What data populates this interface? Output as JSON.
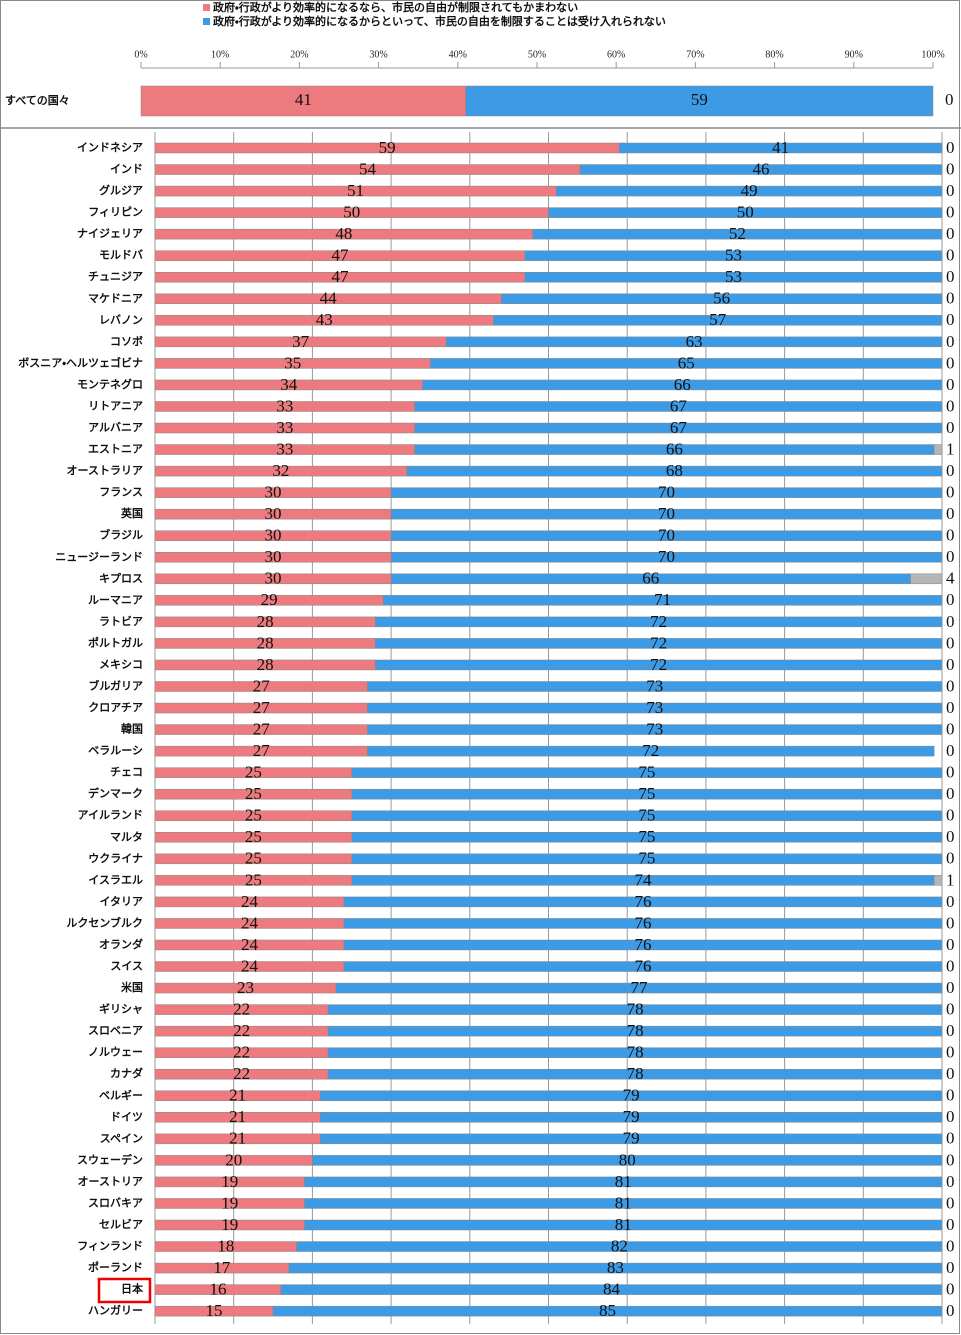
{
  "chart_data": [
    {
      "type": "stacked-bar",
      "categories": [
        "すべての国々"
      ],
      "series": [
        {
          "name": "政府・行政がより効率的になるなら、市民の自由が制限されてもかまわない",
          "color": "#ec7a7e",
          "values": [
            41
          ]
        },
        {
          "name": "政府・行政がより効率的になるからといって、市民の自由を制限することは受け入れられない",
          "color": "#3d9be6",
          "values": [
            59
          ]
        },
        {
          "color": "#b5b5b5",
          "values": [
            0
          ]
        }
      ],
      "xlim": [
        0,
        100
      ],
      "xticks": [
        {
          "value": 0,
          "label": "0%"
        },
        {
          "value": 10,
          "label": "10%"
        },
        {
          "value": 20,
          "label": "20%"
        },
        {
          "value": 30,
          "label": "30%"
        },
        {
          "value": 40,
          "label": "40%"
        },
        {
          "value": 50,
          "label": "50%"
        },
        {
          "value": 60,
          "label": "60%"
        },
        {
          "value": 70,
          "label": "70%"
        },
        {
          "value": 80,
          "label": "80%"
        },
        {
          "value": 90,
          "label": "90%"
        },
        {
          "value": 100,
          "label": "100%"
        }
      ]
    },
    {
      "type": "stacked-bar",
      "categories": [
        "インドネシア",
        "インド",
        "グルジア",
        "フィリピン",
        "ナイジェリア",
        "モルドバ",
        "チュニジア",
        "マケドニア",
        "レバノン",
        "コソボ",
        "ボスニア・ヘルツェゴビナ",
        "モンテネグロ",
        "リトアニア",
        "アルバニア",
        "エストニア",
        "オーストラリア",
        "フランス",
        "英国",
        "ブラジル",
        "ニュージーランド",
        "キプロス",
        "ルーマニア",
        "ラトビア",
        "ポルトガル",
        "メキシコ",
        "ブルガリア",
        "クロアチア",
        "韓国",
        "ベラルーシ",
        "チェコ",
        "デンマーク",
        "アイルランド",
        "マルタ",
        "ウクライナ",
        "イスラエル",
        "イタリア",
        "ルクセンブルク",
        "オランダ",
        "スイス",
        "米国",
        "ギリシャ",
        "スロベニア",
        "ノルウェー",
        "カナダ",
        "ベルギー",
        "ドイツ",
        "スペイン",
        "スウェーデン",
        "オーストリア",
        "スロバキア",
        "セルビア",
        "フィンランド",
        "ポーランド",
        "日本",
        "ハンガリー"
      ],
      "series": [
        {
          "color": "#ec7a7e",
          "values": [
            59,
            54,
            51,
            50,
            48,
            47,
            47,
            44,
            43,
            37,
            35,
            34,
            33,
            33,
            33,
            32,
            30,
            30,
            30,
            30,
            30,
            29,
            28,
            28,
            28,
            27,
            27,
            27,
            27,
            25,
            25,
            25,
            25,
            25,
            25,
            24,
            24,
            24,
            24,
            23,
            22,
            22,
            22,
            22,
            21,
            21,
            21,
            20,
            19,
            19,
            19,
            18,
            17,
            16,
            15
          ]
        },
        {
          "color": "#3d9be6",
          "values": [
            41,
            46,
            49,
            50,
            52,
            53,
            53,
            56,
            57,
            63,
            65,
            66,
            67,
            67,
            66,
            68,
            70,
            70,
            70,
            70,
            66,
            71,
            72,
            72,
            72,
            73,
            73,
            73,
            72,
            75,
            75,
            75,
            75,
            75,
            74,
            76,
            76,
            76,
            76,
            77,
            78,
            78,
            78,
            78,
            79,
            79,
            79,
            80,
            81,
            81,
            81,
            82,
            83,
            84,
            85
          ]
        },
        {
          "color": "#b5b5b5",
          "values": [
            0,
            0,
            0,
            0,
            0,
            0,
            0,
            0,
            0,
            0,
            0,
            0,
            0,
            0,
            1,
            0,
            0,
            0,
            0,
            0,
            4,
            0,
            0,
            0,
            0,
            0,
            0,
            0,
            0,
            0,
            0,
            0,
            0,
            0,
            1,
            0,
            0,
            0,
            0,
            0,
            0,
            0,
            0,
            0,
            0,
            0,
            0,
            0,
            0,
            0,
            0,
            0,
            0,
            0,
            0
          ]
        }
      ],
      "xlim": [
        0,
        100
      ],
      "xticks": [
        0,
        10,
        20,
        30,
        40,
        50,
        60,
        70,
        80,
        90,
        100
      ]
    }
  ]
}
